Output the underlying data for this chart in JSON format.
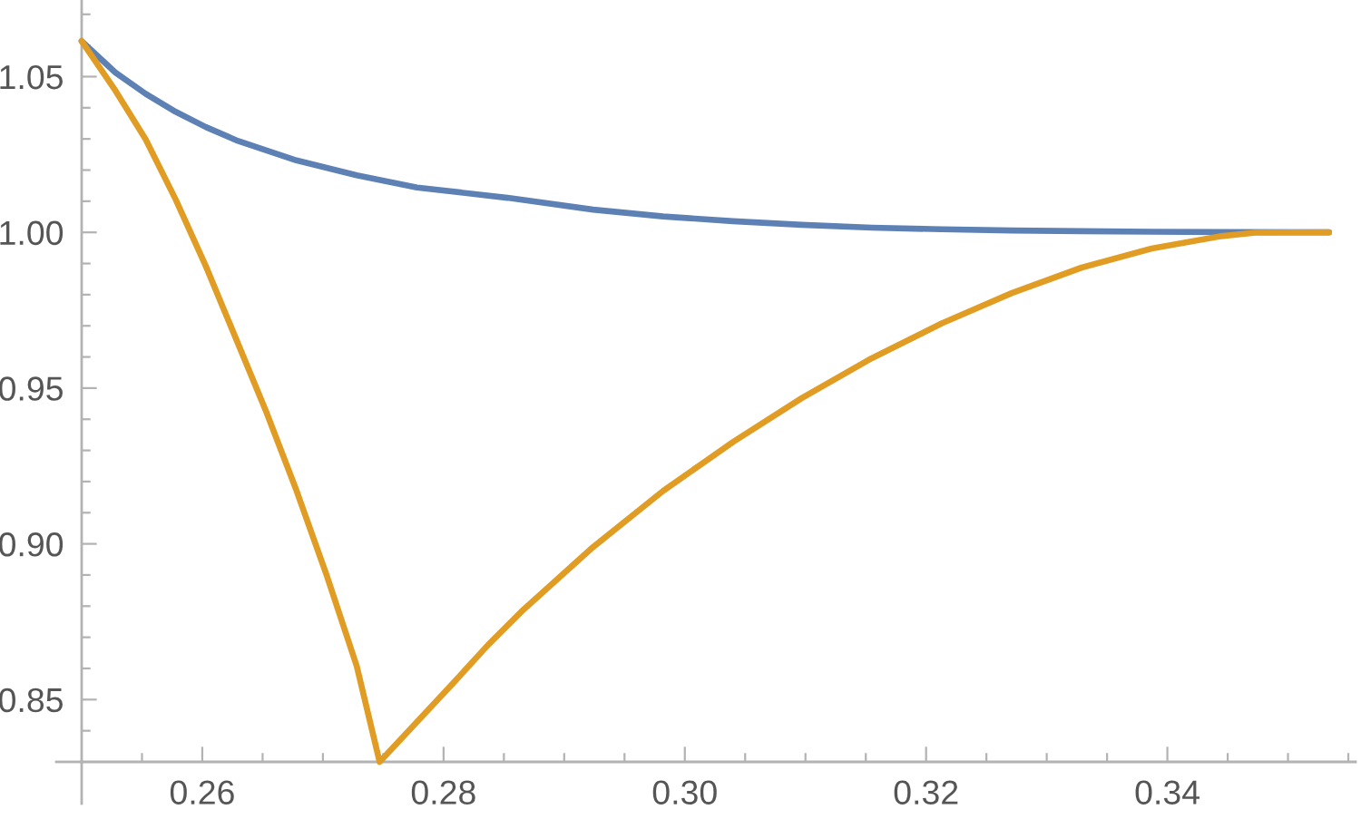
{
  "chart_data": {
    "type": "line",
    "line_style": "solid",
    "series": [
      {
        "color": "#5e81b5",
        "x": [
          0.25,
          0.2528,
          0.2553,
          0.2578,
          0.2603,
          0.2628,
          0.2678,
          0.2728,
          0.2778,
          0.2853,
          0.2924,
          0.2982,
          0.304,
          0.3097,
          0.3155,
          0.3213,
          0.3271,
          0.3329,
          0.3387,
          0.3445,
          0.3534
        ],
        "values": [
          1.0614,
          1.0513,
          1.0445,
          1.0387,
          1.0338,
          1.0296,
          1.0231,
          1.0183,
          1.0144,
          1.0111,
          1.0073,
          1.0051,
          1.0036,
          1.0024,
          1.0015,
          1.001,
          1.0006,
          1.0004,
          1.0002,
          1.0001,
          1.0
        ]
      },
      {
        "color": "#e19c24",
        "x": [
          0.25,
          0.2528,
          0.2553,
          0.2578,
          0.2603,
          0.2628,
          0.2653,
          0.2678,
          0.2703,
          0.2728,
          0.2747,
          0.2808,
          0.2837,
          0.2866,
          0.2924,
          0.2982,
          0.304,
          0.3097,
          0.3155,
          0.3213,
          0.3271,
          0.3329,
          0.3387,
          0.3445,
          0.3473,
          0.3534
        ],
        "values": [
          1.0614,
          1.0455,
          1.0299,
          1.0105,
          0.9891,
          0.9658,
          0.9424,
          0.9172,
          0.89,
          0.8608,
          0.83,
          0.8553,
          0.8676,
          0.8788,
          0.899,
          0.917,
          0.9327,
          0.9468,
          0.9596,
          0.9708,
          0.9805,
          0.9887,
          0.9948,
          0.9988,
          0.9999,
          1.0
        ]
      }
    ],
    "xlim": [
      0.25,
      0.3556
    ],
    "ylim": [
      0.83,
      1.0746
    ],
    "xticks": [
      {
        "value": 0.255,
        "label": null
      },
      0.26,
      {
        "value": 0.265,
        "label": null
      },
      {
        "value": 0.27,
        "label": null
      },
      {
        "value": 0.275,
        "label": null
      },
      0.28,
      {
        "value": 0.285,
        "label": null
      },
      {
        "value": 0.29,
        "label": null
      },
      {
        "value": 0.295,
        "label": null
      },
      {
        "value": 0.3,
        "label": "0.30"
      },
      {
        "value": 0.305,
        "label": null
      },
      {
        "value": 0.31,
        "label": null
      },
      {
        "value": 0.315,
        "label": null
      },
      0.32,
      {
        "value": 0.325,
        "label": null
      },
      {
        "value": 0.33,
        "label": null
      },
      {
        "value": 0.335,
        "label": null
      },
      0.34,
      {
        "value": 0.345,
        "label": null
      },
      {
        "value": 0.35,
        "label": null
      },
      {
        "value": 0.355,
        "label": null
      }
    ],
    "yticks": [
      {
        "value": 0.84,
        "label": null
      },
      0.85,
      {
        "value": 0.86,
        "label": null
      },
      {
        "value": 0.87,
        "label": null
      },
      {
        "value": 0.88,
        "label": null
      },
      {
        "value": 0.89,
        "label": null
      },
      {
        "value": 0.9,
        "label": "0.90"
      },
      {
        "value": 0.91,
        "label": null
      },
      {
        "value": 0.92,
        "label": null
      },
      {
        "value": 0.93,
        "label": null
      },
      {
        "value": 0.94,
        "label": null
      },
      0.95,
      {
        "value": 0.96,
        "label": null
      },
      {
        "value": 0.97,
        "label": null
      },
      {
        "value": 0.98,
        "label": null
      },
      {
        "value": 0.99,
        "label": null
      },
      {
        "value": 1,
        "label": "1.00"
      },
      {
        "value": 1.01,
        "label": null
      },
      {
        "value": 1.02,
        "label": null
      },
      {
        "value": 1.03,
        "label": null
      },
      {
        "value": 1.04,
        "label": null
      },
      1.05,
      {
        "value": 1.06,
        "label": null
      },
      {
        "value": 1.07,
        "label": null
      }
    ]
  }
}
